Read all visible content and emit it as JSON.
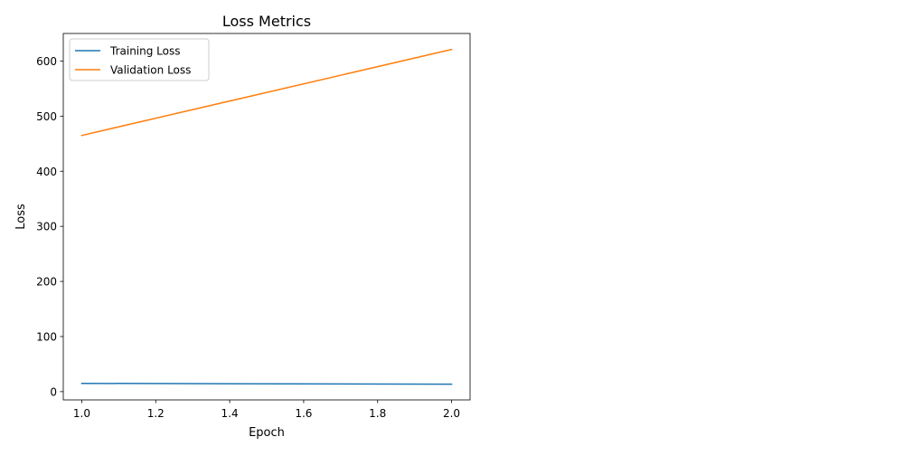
{
  "chart_data": {
    "type": "line",
    "title": "Loss Metrics",
    "xlabel": "Epoch",
    "ylabel": "Loss",
    "x": [
      1.0,
      2.0
    ],
    "xlim": [
      0.95,
      2.05
    ],
    "ylim": [
      -15,
      650
    ],
    "xticks": [
      1.0,
      1.2,
      1.4,
      1.6,
      1.8,
      2.0
    ],
    "xtick_labels": [
      "1.0",
      "1.2",
      "1.4",
      "1.6",
      "1.8",
      "2.0"
    ],
    "yticks": [
      0,
      100,
      200,
      300,
      400,
      500,
      600
    ],
    "ytick_labels": [
      "0",
      "100",
      "200",
      "300",
      "400",
      "500",
      "600"
    ],
    "grid": false,
    "legend_position": "top-left",
    "series": [
      {
        "name": "Training Loss",
        "values": [
          15.0,
          13.5
        ],
        "color": "#1f77b4"
      },
      {
        "name": "Validation Loss",
        "values": [
          465.0,
          621.0
        ],
        "color": "#ff7f0e"
      }
    ]
  }
}
